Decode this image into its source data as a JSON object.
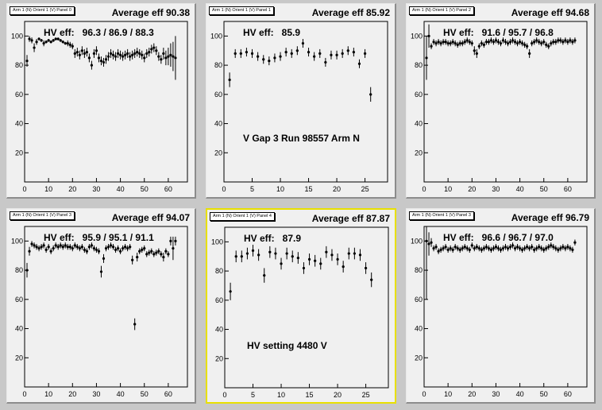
{
  "chart_data": [
    {
      "type": "scatter",
      "panel_label": "Arm 1 (N) Orient 1 (V) Panel 0",
      "title": "Average eff 90.38",
      "hv_label": "HV eff:",
      "hv_values": "96.3 / 86.9 / 88.3",
      "note": "",
      "xlim": [
        0,
        68
      ],
      "ylim": [
        0,
        110
      ],
      "x_ticks": [
        0,
        10,
        20,
        30,
        40,
        50,
        60
      ],
      "y_ticks": [
        20,
        40,
        60,
        80,
        100
      ],
      "selected": false,
      "x": [
        1,
        2,
        3,
        4,
        5,
        6,
        7,
        8,
        9,
        10,
        11,
        12,
        13,
        14,
        15,
        16,
        17,
        18,
        19,
        20,
        21,
        22,
        23,
        24,
        25,
        26,
        27,
        28,
        29,
        30,
        31,
        32,
        33,
        34,
        35,
        36,
        37,
        38,
        39,
        40,
        41,
        42,
        43,
        44,
        45,
        46,
        47,
        48,
        49,
        50,
        51,
        52,
        53,
        54,
        55,
        56,
        57,
        58,
        59,
        60,
        61,
        62,
        63
      ],
      "y": [
        83,
        98,
        97,
        92,
        96,
        98,
        97,
        95,
        96,
        97,
        96,
        97,
        98,
        98,
        97,
        96,
        95,
        95,
        94,
        93,
        88,
        89,
        87,
        90,
        88,
        89,
        85,
        80,
        88,
        90,
        85,
        83,
        82,
        84,
        86,
        88,
        87,
        86,
        88,
        87,
        86,
        87,
        88,
        86,
        87,
        88,
        89,
        88,
        87,
        85,
        88,
        89,
        91,
        92,
        90,
        86,
        84,
        88,
        85,
        86,
        87,
        86,
        85
      ],
      "err": [
        4,
        2,
        2,
        3,
        2,
        1,
        1,
        2,
        1,
        1,
        1,
        1,
        1,
        1,
        1,
        1,
        1,
        2,
        2,
        2,
        3,
        3,
        3,
        3,
        3,
        3,
        3,
        3,
        3,
        3,
        3,
        3,
        3,
        3,
        3,
        3,
        3,
        3,
        3,
        3,
        3,
        3,
        3,
        3,
        3,
        3,
        3,
        3,
        3,
        3,
        3,
        3,
        3,
        3,
        3,
        3,
        3,
        4,
        5,
        6,
        8,
        10,
        15
      ]
    },
    {
      "type": "scatter",
      "panel_label": "Arm 1 (N) Orient 1 (V) Panel 1",
      "title": "Average eff 85.92",
      "hv_label": "HV eff:",
      "hv_values": "85.9",
      "note": "V Gap 3 Run 98557 Arm N",
      "xlim": [
        0,
        29
      ],
      "ylim": [
        0,
        110
      ],
      "x_ticks": [
        0,
        5,
        10,
        15,
        20,
        25
      ],
      "y_ticks": [
        20,
        40,
        60,
        80,
        100
      ],
      "selected": false,
      "x": [
        1,
        2,
        3,
        4,
        5,
        6,
        7,
        8,
        9,
        10,
        11,
        12,
        13,
        14,
        15,
        16,
        17,
        18,
        19,
        20,
        21,
        22,
        23,
        24,
        25,
        26
      ],
      "y": [
        70,
        88,
        88,
        89,
        88,
        86,
        84,
        83,
        85,
        86,
        89,
        88,
        90,
        95,
        89,
        86,
        88,
        82,
        87,
        87,
        88,
        90,
        89,
        81,
        88,
        60
      ],
      "err": [
        5,
        3,
        3,
        3,
        3,
        3,
        3,
        3,
        3,
        3,
        3,
        3,
        3,
        3,
        3,
        3,
        3,
        3,
        3,
        3,
        3,
        3,
        3,
        3,
        3,
        5
      ]
    },
    {
      "type": "scatter",
      "panel_label": "Arm 1 (N) Orient 1 (V) Panel 2",
      "title": "Average eff 94.68",
      "hv_label": "HV eff:",
      "hv_values": "91.6 / 95.7 / 96.8",
      "note": "",
      "xlim": [
        0,
        68
      ],
      "ylim": [
        0,
        110
      ],
      "x_ticks": [
        0,
        10,
        20,
        30,
        40,
        50,
        60
      ],
      "y_ticks": [
        20,
        40,
        60,
        80,
        100
      ],
      "selected": false,
      "x": [
        1,
        2,
        3,
        4,
        5,
        6,
        7,
        8,
        9,
        10,
        11,
        12,
        13,
        14,
        15,
        16,
        17,
        18,
        19,
        20,
        21,
        22,
        23,
        24,
        25,
        26,
        27,
        28,
        29,
        30,
        31,
        32,
        33,
        34,
        35,
        36,
        37,
        38,
        39,
        40,
        41,
        42,
        43,
        44,
        45,
        46,
        47,
        48,
        49,
        50,
        51,
        52,
        53,
        54,
        55,
        56,
        57,
        58,
        59,
        60,
        61,
        62,
        63
      ],
      "y": [
        85,
        100,
        93,
        96,
        95,
        96,
        95,
        96,
        96,
        95,
        95,
        96,
        95,
        94,
        95,
        95,
        96,
        97,
        96,
        95,
        90,
        88,
        93,
        95,
        94,
        96,
        96,
        97,
        96,
        97,
        96,
        95,
        97,
        96,
        95,
        96,
        97,
        96,
        95,
        96,
        95,
        94,
        93,
        88,
        95,
        96,
        97,
        96,
        95,
        96,
        94,
        93,
        95,
        96,
        96,
        97,
        97,
        96,
        97,
        96,
        97,
        96,
        97
      ],
      "err": [
        15,
        8,
        2,
        2,
        2,
        2,
        2,
        2,
        2,
        2,
        2,
        2,
        2,
        2,
        2,
        2,
        2,
        2,
        2,
        2,
        3,
        3,
        2,
        2,
        2,
        2,
        2,
        2,
        2,
        2,
        2,
        2,
        2,
        2,
        2,
        2,
        2,
        2,
        2,
        2,
        2,
        2,
        2,
        3,
        2,
        2,
        2,
        2,
        2,
        2,
        2,
        2,
        2,
        2,
        2,
        2,
        2,
        2,
        2,
        2,
        2,
        2,
        2
      ]
    },
    {
      "type": "scatter",
      "panel_label": "Arm 1 (N) Orient 1 (V) Panel 3",
      "title": "Average eff 94.07",
      "hv_label": "HV eff:",
      "hv_values": "95.9 / 95.1 / 91.1",
      "note": "",
      "xlim": [
        0,
        68
      ],
      "ylim": [
        0,
        110
      ],
      "x_ticks": [
        0,
        10,
        20,
        30,
        40,
        50,
        60
      ],
      "y_ticks": [
        20,
        40,
        60,
        80,
        100
      ],
      "selected": false,
      "x": [
        1,
        2,
        3,
        4,
        5,
        6,
        7,
        8,
        9,
        10,
        11,
        12,
        13,
        14,
        15,
        16,
        17,
        18,
        19,
        20,
        21,
        22,
        23,
        24,
        25,
        26,
        27,
        28,
        29,
        30,
        31,
        32,
        33,
        34,
        35,
        36,
        37,
        38,
        39,
        40,
        41,
        42,
        43,
        44,
        45,
        46,
        47,
        48,
        49,
        50,
        51,
        52,
        53,
        54,
        55,
        56,
        57,
        58,
        59,
        60,
        61,
        62,
        63
      ],
      "y": [
        80,
        93,
        98,
        97,
        96,
        95,
        96,
        97,
        94,
        96,
        93,
        95,
        97,
        96,
        97,
        96,
        97,
        96,
        96,
        95,
        97,
        96,
        95,
        96,
        94,
        93,
        96,
        97,
        95,
        94,
        93,
        79,
        88,
        95,
        96,
        97,
        96,
        94,
        95,
        93,
        95,
        96,
        95,
        96,
        87,
        43,
        89,
        93,
        94,
        95,
        91,
        92,
        93,
        91,
        92,
        93,
        91,
        89,
        93,
        91,
        100,
        95,
        100
      ],
      "err": [
        5,
        3,
        2,
        2,
        2,
        2,
        2,
        2,
        2,
        2,
        2,
        2,
        2,
        2,
        2,
        2,
        2,
        2,
        2,
        2,
        2,
        2,
        2,
        2,
        2,
        2,
        2,
        2,
        2,
        2,
        2,
        4,
        3,
        2,
        2,
        2,
        2,
        2,
        2,
        2,
        2,
        2,
        2,
        2,
        3,
        4,
        3,
        2,
        2,
        2,
        2,
        2,
        2,
        2,
        2,
        2,
        2,
        3,
        2,
        2,
        3,
        8,
        3
      ]
    },
    {
      "type": "scatter",
      "panel_label": "Arm 1 (N) Orient 1 (V) Panel 4",
      "title": "Average eff 87.87",
      "hv_label": "HV eff:",
      "hv_values": "87.9",
      "note": "HV setting 4480 V",
      "xlim": [
        0,
        29
      ],
      "ylim": [
        0,
        110
      ],
      "x_ticks": [
        0,
        5,
        10,
        15,
        20,
        25
      ],
      "y_ticks": [
        20,
        40,
        60,
        80,
        100
      ],
      "selected": true,
      "x": [
        1,
        2,
        3,
        4,
        5,
        6,
        7,
        8,
        9,
        10,
        11,
        12,
        13,
        14,
        15,
        16,
        17,
        18,
        19,
        20,
        21,
        22,
        23,
        24,
        25,
        26
      ],
      "y": [
        66,
        90,
        90,
        92,
        94,
        91,
        77,
        93,
        92,
        85,
        92,
        90,
        89,
        82,
        88,
        87,
        85,
        93,
        91,
        88,
        83,
        92,
        92,
        91,
        82,
        74
      ],
      "err": [
        6,
        4,
        4,
        4,
        4,
        4,
        5,
        4,
        4,
        4,
        4,
        4,
        4,
        4,
        4,
        4,
        4,
        4,
        4,
        4,
        4,
        4,
        4,
        4,
        4,
        5
      ]
    },
    {
      "type": "scatter",
      "panel_label": "Arm 1 (N) Orient 1 (V) Panel 3",
      "title": "Average eff 96.79",
      "hv_label": "HV eff:",
      "hv_values": "96.6 / 96.7 / 97.0",
      "note": "",
      "xlim": [
        0,
        68
      ],
      "ylim": [
        0,
        110
      ],
      "x_ticks": [
        0,
        10,
        20,
        30,
        40,
        50,
        60
      ],
      "y_ticks": [
        20,
        40,
        60,
        80,
        100
      ],
      "selected": false,
      "x": [
        1,
        2,
        3,
        4,
        5,
        6,
        7,
        8,
        9,
        10,
        11,
        12,
        13,
        14,
        15,
        16,
        17,
        18,
        19,
        20,
        21,
        22,
        23,
        24,
        25,
        26,
        27,
        28,
        29,
        30,
        31,
        32,
        33,
        34,
        35,
        36,
        37,
        38,
        39,
        40,
        41,
        42,
        43,
        44,
        45,
        46,
        47,
        48,
        49,
        50,
        51,
        52,
        53,
        54,
        55,
        56,
        57,
        58,
        59,
        60,
        61,
        62,
        63
      ],
      "y": [
        100,
        98,
        99,
        95,
        96,
        93,
        94,
        95,
        96,
        94,
        95,
        94,
        96,
        95,
        94,
        95,
        96,
        95,
        94,
        97,
        95,
        96,
        95,
        94,
        95,
        96,
        95,
        94,
        95,
        96,
        95,
        94,
        95,
        96,
        95,
        96,
        97,
        95,
        96,
        95,
        94,
        95,
        96,
        95,
        96,
        94,
        95,
        96,
        95,
        94,
        95,
        96,
        97,
        96,
        95,
        94,
        95,
        96,
        95,
        96,
        95,
        94,
        99
      ],
      "err": [
        40,
        8,
        3,
        2,
        2,
        2,
        2,
        2,
        2,
        2,
        2,
        2,
        2,
        2,
        2,
        2,
        2,
        2,
        2,
        2,
        2,
        2,
        2,
        2,
        2,
        2,
        2,
        2,
        2,
        2,
        2,
        2,
        2,
        2,
        2,
        2,
        2,
        2,
        2,
        2,
        2,
        2,
        2,
        2,
        2,
        2,
        2,
        2,
        2,
        2,
        2,
        2,
        2,
        2,
        2,
        2,
        2,
        2,
        2,
        2,
        2,
        2,
        2
      ]
    }
  ]
}
